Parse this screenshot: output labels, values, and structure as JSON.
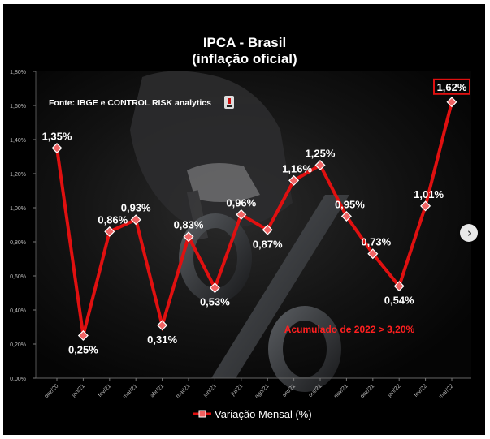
{
  "chart_data": {
    "type": "line",
    "title": "IPCA - Brasil",
    "subtitle": "(inflação oficial)",
    "source": "Fonte: IBGE e CONTROL RISK analytics",
    "annotation": "Acumulado de 2022 > 3,20%",
    "categories": [
      "dez/20",
      "jan/21",
      "fev/21",
      "mar/21",
      "abr/21",
      "mai/21",
      "jun/21",
      "jul/21",
      "ago/21",
      "set/21",
      "out/21",
      "nov/21",
      "dez/21",
      "jan/22",
      "fev/22",
      "mar/22"
    ],
    "series": [
      {
        "name": "Variação Mensal (%)",
        "values": [
          1.35,
          0.25,
          0.86,
          0.93,
          0.31,
          0.83,
          0.53,
          0.96,
          0.87,
          1.16,
          1.25,
          0.95,
          0.73,
          0.54,
          1.01,
          1.62
        ],
        "labels": [
          "1,35%",
          "0,25%",
          "0,86%",
          "0,93%",
          "0,31%",
          "0,83%",
          "0,53%",
          "0,96%",
          "0,87%",
          "1,16%",
          "1,25%",
          "0,95%",
          "0,73%",
          "0,54%",
          "1,01%",
          "1,62%"
        ]
      }
    ],
    "yticks": [
      "0,00%",
      "0,20%",
      "0,40%",
      "0,60%",
      "0,80%",
      "1,00%",
      "1,20%",
      "1,40%",
      "1,60%",
      "1,80%"
    ],
    "ylim": [
      0,
      1.8
    ],
    "grid": false,
    "legend_position": "bottom",
    "highlight_last": true
  },
  "ui": {
    "next_icon": "chevron-right-icon"
  },
  "colors": {
    "line": "#e01010",
    "background": "#0a0a0a",
    "annotation": "#ff2020",
    "text": "#ffffff"
  }
}
